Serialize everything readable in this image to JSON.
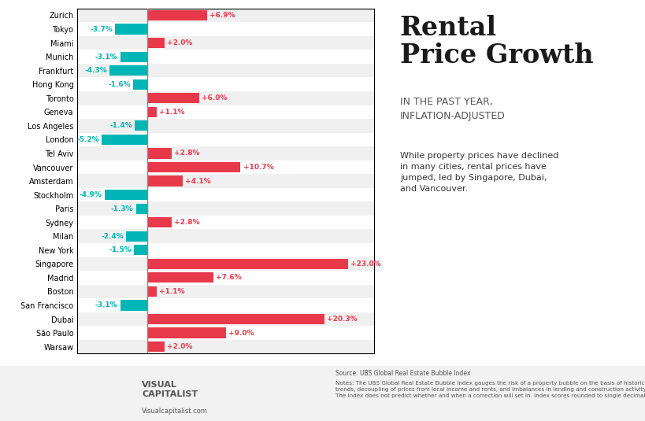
{
  "chart_data": {
    "type": "bar",
    "orientation": "horizontal",
    "title": "Rental\nPrice Growth",
    "subtitle": "IN THE PAST YEAR,\nINFLATION-ADJUSTED",
    "annotations": [
      "While property prices have declined\nin many cities, rental prices have\njumped, led by Singapore, Dubai,\nand Vancouver.",
      "Source: UBS Global Real Estate Bubble Index",
      "Notes: The UBS Global Real Estate Bubble Index gauges the risk of a property bubble on the basis of historical\ntrends, decoupling of prices from local income and rents, and imbalances in lending and construction activity.\nThe index does not predict whether and when a correction will set in. Index scores rounded to single decimal.",
      "VISUAL\nCAPITALIST",
      "Visualcapitalist.com"
    ],
    "categories": [
      "Zurich",
      "Tokyo",
      "Miami",
      "Munich",
      "Frankfurt",
      "Hong Kong",
      "Toronto",
      "Geneva",
      "Los Angeles",
      "London",
      "Tel Aviv",
      "Vancouver",
      "Amsterdam",
      "Stockholm",
      "Paris",
      "Sydney",
      "Milan",
      "New York",
      "Singapore",
      "Madrid",
      "Boston",
      "San Francisco",
      "Dubai",
      "São Paulo",
      "Warsaw"
    ],
    "values": [
      6.9,
      -3.7,
      2.0,
      -3.1,
      -4.3,
      -1.6,
      6.0,
      1.1,
      -1.4,
      -5.2,
      2.8,
      10.7,
      4.1,
      -4.9,
      -1.3,
      2.8,
      -2.4,
      -1.5,
      23.0,
      7.6,
      1.1,
      -3.1,
      20.3,
      9.0,
      2.0
    ],
    "value_labels": [
      "+6.9%",
      "-3.7%",
      "+2.0%",
      "-3.1%",
      "-4.3%",
      "-1.6%",
      "+6.0%",
      "+1.1%",
      "-1.4%",
      "-5.2%",
      "+2.8%",
      "+10.7%",
      "+4.1%",
      "-4.9%",
      "-1.3%",
      "+2.8%",
      "-2.4%",
      "-1.5%",
      "+23.0%",
      "+7.6%",
      "+1.1%",
      "-3.1%",
      "+20.3%",
      "+9.0%",
      "+2.0%"
    ],
    "colors": [
      "#E8394A",
      "#00B5B5",
      "#E8394A",
      "#00B5B5",
      "#00B5B5",
      "#00B5B5",
      "#E8394A",
      "#E8394A",
      "#00B5B5",
      "#00B5B5",
      "#E8394A",
      "#E8394A",
      "#E8394A",
      "#00B5B5",
      "#00B5B5",
      "#E8394A",
      "#00B5B5",
      "#00B5B5",
      "#E8394A",
      "#E8394A",
      "#E8394A",
      "#00B5B5",
      "#E8394A",
      "#E8394A",
      "#E8394A"
    ],
    "xlim": [
      -8,
      26
    ],
    "data_labels": true,
    "tick_labels": "y"
  }
}
